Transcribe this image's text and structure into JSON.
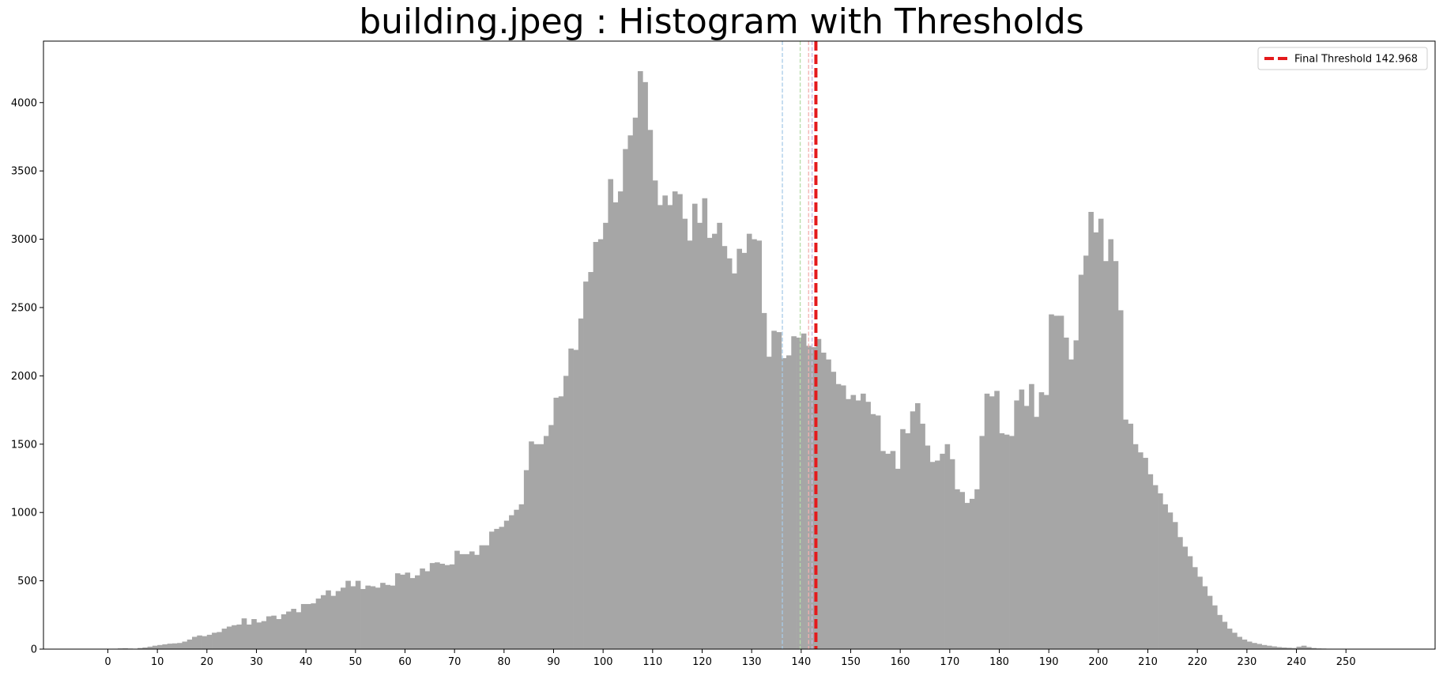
{
  "chart_data": {
    "type": "bar",
    "title": "building.jpeg : Histogram with Thresholds",
    "xlabel": "",
    "ylabel": "",
    "xlim": [
      -13,
      268
    ],
    "ylim": [
      0,
      4450
    ],
    "bin_start": 0,
    "bin_width": 1,
    "x_ticks": [
      0,
      10,
      20,
      30,
      40,
      50,
      60,
      70,
      80,
      90,
      100,
      110,
      120,
      130,
      140,
      150,
      160,
      170,
      180,
      190,
      200,
      210,
      220,
      230,
      240,
      250
    ],
    "y_ticks": [
      0,
      500,
      1000,
      1500,
      2000,
      2500,
      3000,
      3500,
      4000
    ],
    "grid": false,
    "legend_position": "top-right",
    "bar_color": "#a6a6a6",
    "values": [
      2,
      3,
      5,
      6,
      4,
      3,
      8,
      12,
      18,
      25,
      30,
      35,
      40,
      42,
      45,
      55,
      70,
      90,
      100,
      95,
      105,
      120,
      125,
      150,
      165,
      175,
      180,
      225,
      180,
      220,
      195,
      205,
      240,
      245,
      220,
      255,
      275,
      295,
      270,
      330,
      330,
      335,
      370,
      395,
      430,
      390,
      425,
      450,
      500,
      460,
      500,
      440,
      465,
      460,
      450,
      485,
      470,
      465,
      555,
      545,
      560,
      520,
      540,
      590,
      570,
      630,
      635,
      625,
      615,
      620,
      720,
      695,
      695,
      715,
      690,
      760,
      760,
      860,
      880,
      895,
      940,
      980,
      1020,
      1060,
      1310,
      1520,
      1500,
      1500,
      1560,
      1640,
      1840,
      1850,
      2000,
      2200,
      2190,
      2420,
      2690,
      2760,
      2980,
      3000,
      3120,
      3440,
      3270,
      3350,
      3660,
      3760,
      3890,
      4230,
      4150,
      3800,
      3430,
      3250,
      3320,
      3250,
      3350,
      3330,
      3150,
      2990,
      3260,
      3120,
      3300,
      3010,
      3040,
      3120,
      2950,
      2860,
      2750,
      2930,
      2900,
      3040,
      3000,
      2990,
      2460,
      2140,
      2330,
      2320,
      2130,
      2150,
      2290,
      2280,
      2310,
      2220,
      2210,
      2270,
      2170,
      2120,
      2030,
      1940,
      1930,
      1830,
      1860,
      1820,
      1870,
      1810,
      1720,
      1710,
      1450,
      1430,
      1450,
      1320,
      1610,
      1580,
      1740,
      1800,
      1650,
      1490,
      1370,
      1380,
      1430,
      1500,
      1390,
      1170,
      1150,
      1070,
      1100,
      1170,
      1560,
      1870,
      1850,
      1890,
      1580,
      1570,
      1560,
      1820,
      1900,
      1780,
      1940,
      1700,
      1880,
      1860,
      2450,
      2440,
      2440,
      2280,
      2120,
      2260,
      2740,
      2880,
      3200,
      3050,
      3150,
      2840,
      3000,
      2840,
      2480,
      1680,
      1650,
      1500,
      1440,
      1400,
      1280,
      1200,
      1140,
      1060,
      1000,
      930,
      820,
      750,
      680,
      600,
      530,
      460,
      390,
      320,
      250,
      200,
      150,
      120,
      90,
      70,
      55,
      45,
      38,
      30,
      25,
      20,
      15,
      12,
      10,
      8,
      18,
      25,
      15,
      8,
      5,
      4,
      3,
      2,
      2,
      1,
      1,
      1,
      1,
      0,
      0,
      0
    ],
    "threshold_lines": [
      {
        "x": 136.2,
        "color": "#a8cbe8",
        "style": "dashed"
      },
      {
        "x": 139.8,
        "color": "#b5dca8",
        "style": "dashed"
      },
      {
        "x": 141.5,
        "color": "#f2b0b0",
        "style": "dashed"
      },
      {
        "x": 142.2,
        "color": "#c8b6e2",
        "style": "dashed"
      }
    ],
    "final_threshold": {
      "x": 142.968,
      "color": "#e41a1c",
      "style": "dashed"
    },
    "legend": [
      {
        "label": "Final Threshold 142.968",
        "color": "#e41a1c",
        "style": "dashed"
      }
    ]
  }
}
